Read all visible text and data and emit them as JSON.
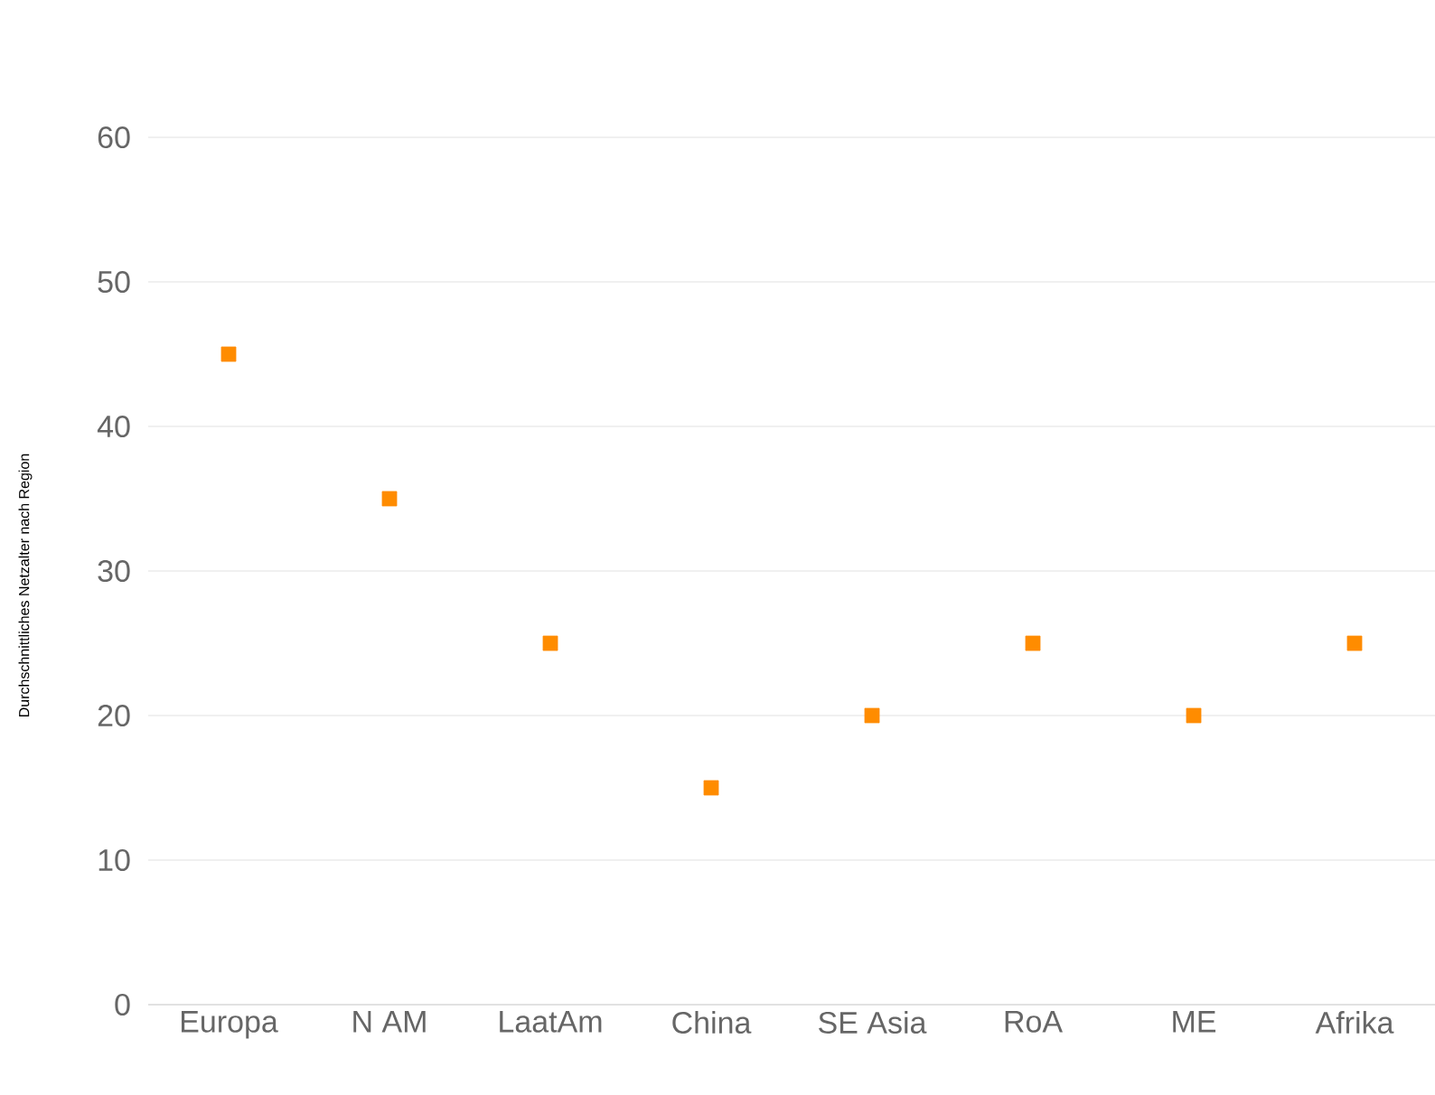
{
  "chart_data": {
    "type": "scatter",
    "ylabel": "Durchschnittliches Netzalter nach Region",
    "categories": [
      "Europa",
      "N AM",
      "LaatAm",
      "China",
      "SE Asia",
      "RoA",
      "ME",
      "Afrika"
    ],
    "values": [
      45,
      35,
      25,
      15,
      20,
      25,
      20,
      25
    ],
    "color": "#ff8c00",
    "marker": "square",
    "ylim": [
      0,
      60
    ],
    "yticks": [
      0,
      10,
      20,
      30,
      40,
      50,
      60
    ],
    "grid": "y"
  }
}
